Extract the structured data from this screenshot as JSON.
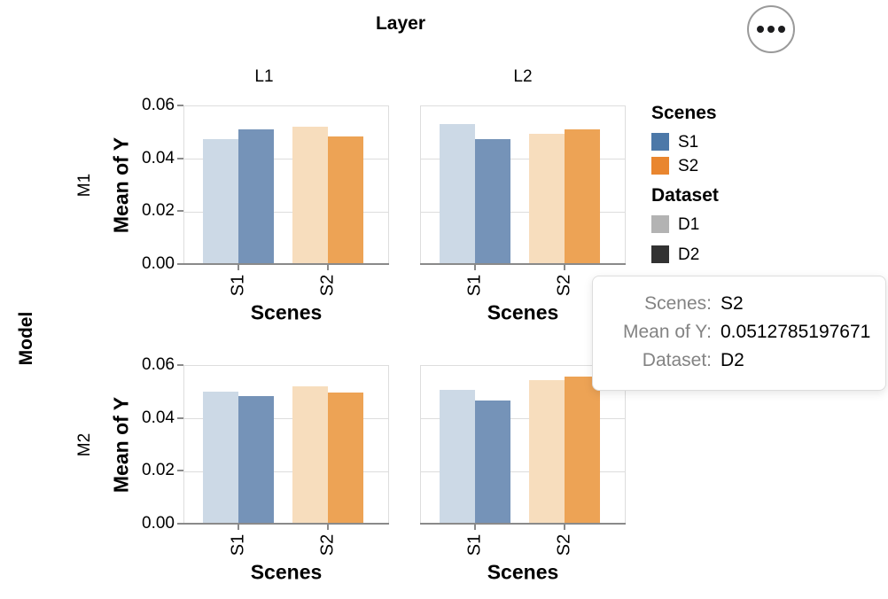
{
  "header": {
    "title": "Layer",
    "menu_icon": "ellipsis-icon"
  },
  "tooltip": {
    "rows": [
      {
        "key": "Scenes:",
        "value": "S2"
      },
      {
        "key": "Mean of Y:",
        "value": "0.0512785197671"
      },
      {
        "key": "Dataset:",
        "value": "D2"
      }
    ]
  },
  "legend": {
    "groups": [
      {
        "title": "Scenes",
        "items": [
          {
            "label": "S1",
            "color": "#4c78a8"
          },
          {
            "label": "S2",
            "color": "#e9862f"
          }
        ]
      },
      {
        "title": "Dataset",
        "items": [
          {
            "label": "D1",
            "color": "#b3b3b3"
          },
          {
            "label": "D2",
            "color": "#323232"
          }
        ]
      }
    ]
  },
  "chart_data": {
    "type": "bar",
    "facet": {
      "row_field": "Model",
      "col_field": "Layer",
      "rows": [
        "M1",
        "M2"
      ],
      "cols": [
        "L1",
        "L2"
      ]
    },
    "xlabel": "Scenes",
    "ylabel": "Mean of Y",
    "categories": [
      "S1",
      "S2"
    ],
    "group_field": "Dataset",
    "groups": [
      "D1",
      "D2"
    ],
    "ylim": [
      0,
      0.06
    ],
    "yticks": [
      "0.00",
      "0.02",
      "0.04",
      "0.06"
    ],
    "grid": true,
    "legend_position": "right",
    "bar_colors": {
      "S1": {
        "D1": "#ccd9e6",
        "D2": "#7593b8"
      },
      "S2": {
        "D1": "#f7ddbd",
        "D2": "#eda355"
      }
    },
    "style": {
      "grid_color": "#dddddd",
      "frame_color": "#dddddd",
      "axis_color": "#8a8a8a"
    },
    "cells": [
      {
        "model": "M1",
        "layer": "L1",
        "values": {
          "S1": {
            "D1": 0.0474,
            "D2": 0.0512
          },
          "S2": {
            "D1": 0.0524,
            "D2": 0.0484
          }
        }
      },
      {
        "model": "M1",
        "layer": "L2",
        "values": {
          "S1": {
            "D1": 0.0532,
            "D2": 0.0475
          },
          "S2": {
            "D1": 0.0497,
            "D2": 0.0512785197671
          }
        }
      },
      {
        "model": "M2",
        "layer": "L1",
        "values": {
          "S1": {
            "D1": 0.0501,
            "D2": 0.0487
          },
          "S2": {
            "D1": 0.0523,
            "D2": 0.05
          }
        }
      },
      {
        "model": "M2",
        "layer": "L2",
        "values": {
          "S1": {
            "D1": 0.0508,
            "D2": 0.047
          },
          "S2": {
            "D1": 0.0547,
            "D2": 0.056
          }
        }
      }
    ]
  }
}
